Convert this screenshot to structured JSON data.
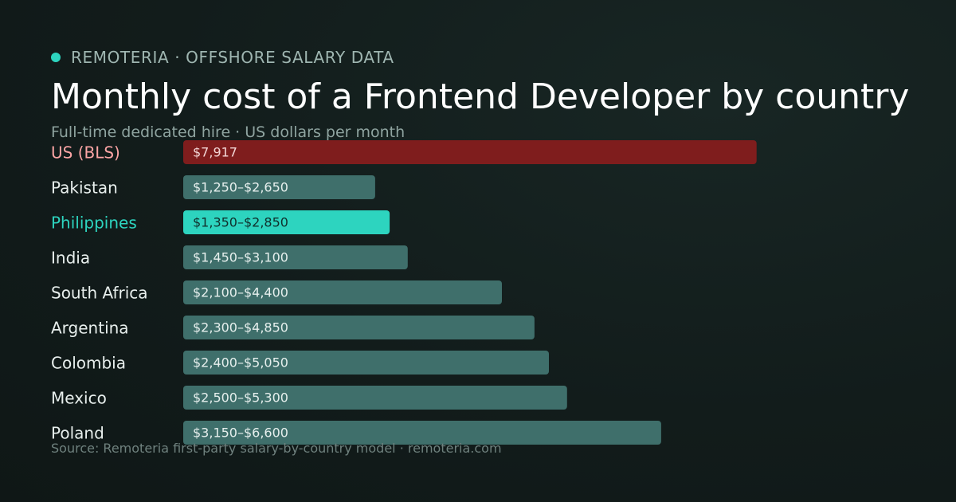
{
  "header": {
    "brand": "REMOTERIA · OFFSHORE SALARY DATA",
    "title": "Monthly cost of a Frontend Developer by country",
    "subtitle": "Full-time dedicated hire · US dollars per month"
  },
  "footer": {
    "source": "Source: Remoteria first-party salary-by-country model · remoteria.com"
  },
  "colors": {
    "accent": "#2dd4bf",
    "us_bar": "#7f1d1d",
    "us_label": "#fca5a5",
    "default_bar": "#3f6f6b",
    "default_label": "#e8efed",
    "highlight_label": "#2dd4bf",
    "highlight_value_text": "#10302c"
  },
  "chart_data": {
    "type": "bar",
    "orientation": "horizontal",
    "unit": "USD per month",
    "xlim": [
      0,
      9500
    ],
    "grid": false,
    "categories": [
      "US (BLS)",
      "Pakistan",
      "Philippines",
      "India",
      "South Africa",
      "Argentina",
      "Colombia",
      "Mexico",
      "Poland"
    ],
    "bars": [
      {
        "category": "US (BLS)",
        "value": 7917,
        "label": "$7,917",
        "style": "us"
      },
      {
        "category": "Pakistan",
        "low": 1250,
        "high": 2650,
        "label": "$1,250–$2,650",
        "style": "default"
      },
      {
        "category": "Philippines",
        "low": 1350,
        "high": 2850,
        "label": "$1,350–$2,850",
        "style": "highlight"
      },
      {
        "category": "India",
        "low": 1450,
        "high": 3100,
        "label": "$1,450–$3,100",
        "style": "default"
      },
      {
        "category": "South Africa",
        "low": 2100,
        "high": 4400,
        "label": "$2,100–$4,400",
        "style": "default"
      },
      {
        "category": "Argentina",
        "low": 2300,
        "high": 4850,
        "label": "$2,300–$4,850",
        "style": "default"
      },
      {
        "category": "Colombia",
        "low": 2400,
        "high": 5050,
        "label": "$2,400–$5,050",
        "style": "default"
      },
      {
        "category": "Mexico",
        "low": 2500,
        "high": 5300,
        "label": "$2,500–$5,300",
        "style": "default"
      },
      {
        "category": "Poland",
        "low": 3150,
        "high": 6600,
        "label": "$3,150–$6,600",
        "style": "default"
      }
    ]
  }
}
